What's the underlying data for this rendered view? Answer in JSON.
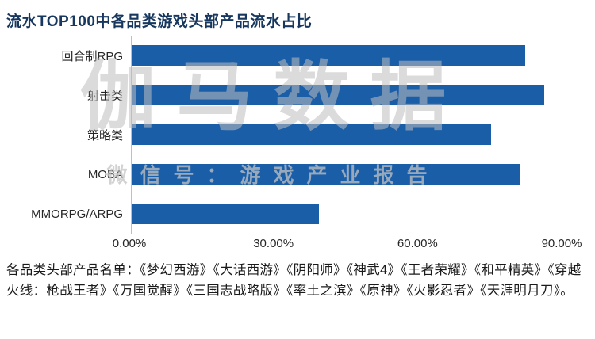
{
  "title": "流水TOP100中各品类游戏头部产品流水占比",
  "watermark": {
    "main": "伽马数据",
    "sub": "微信号：游戏产业报告"
  },
  "chart_data": {
    "type": "bar",
    "orientation": "horizontal",
    "title": "流水TOP100中各品类游戏头部产品流水占比",
    "categories": [
      "回合制RPG",
      "射击类",
      "策略类",
      "MOBA",
      "MMORPG/ARPG"
    ],
    "values": [
      82,
      86,
      75,
      81,
      39
    ],
    "x_ticks": [
      "0.00%",
      "30.00%",
      "60.00%",
      "90.00%"
    ],
    "xlim": [
      0,
      90
    ],
    "bar_color": "#1b5ea8",
    "grid": "off",
    "legend": "none"
  },
  "footer": {
    "text": "各品类头部产品名单：《梦幻西游》《大话西游》《阴阳师》《神武4》《王者荣耀》《和平精英》《穿越火线：枪战王者》《万国觉醒》《三国志战略版》《率土之滨》《原神》《火影忍者》《天涯明月刀》。"
  }
}
